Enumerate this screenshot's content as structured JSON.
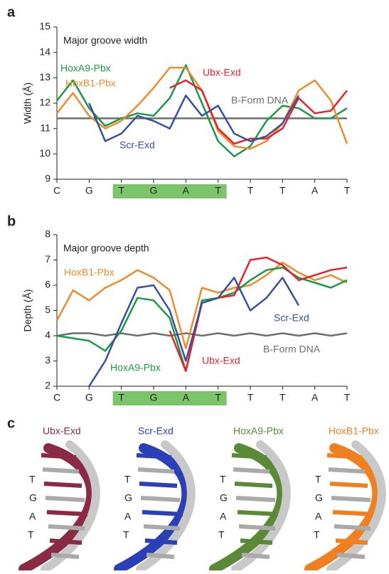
{
  "chart_data": [
    {
      "type": "line",
      "panel": "a",
      "annotation": "Major groove width",
      "ylabel": "Width (Å)",
      "x": [
        0,
        0.5,
        1,
        1.5,
        2,
        2.5,
        3,
        3.5,
        4,
        4.5,
        5,
        5.5,
        6,
        6.5,
        7,
        7.5,
        8,
        8.5,
        9
      ],
      "xlim": [
        0,
        9
      ],
      "xticks": [
        {
          "value": 0,
          "label": "C"
        },
        {
          "value": 1,
          "label": "G"
        },
        {
          "value": 2,
          "label": "T"
        },
        {
          "value": 3,
          "label": "G"
        },
        {
          "value": 4,
          "label": "A"
        },
        {
          "value": 5,
          "label": "T"
        },
        {
          "value": 6,
          "label": "T"
        },
        {
          "value": 7,
          "label": "T"
        },
        {
          "value": 8,
          "label": "A"
        },
        {
          "value": 9,
          "label": "T"
        }
      ],
      "ylim": [
        9,
        15
      ],
      "yticks": [
        9,
        10,
        11,
        12,
        13,
        14,
        15
      ],
      "series": [
        {
          "name": "HoxA9-Pbx",
          "color": "#1a9a48",
          "values": [
            12.1,
            12.9,
            11.8,
            11.1,
            11.4,
            11.6,
            11.5,
            12.2,
            13.5,
            12.0,
            10.5,
            9.9,
            10.3,
            11.3,
            11.9,
            11.8,
            11.4,
            11.4,
            11.8
          ]
        },
        {
          "name": "HoxB1-Pbx",
          "color": "#f08a2c",
          "values": [
            11.6,
            12.4,
            11.5,
            11.0,
            11.3,
            11.9,
            12.6,
            13.4,
            13.4,
            12.5,
            10.9,
            10.3,
            10.2,
            10.5,
            11.2,
            12.5,
            12.9,
            12.1,
            10.4
          ]
        },
        {
          "name": "Ubx-Exd",
          "color": "#e8222d",
          "values": [
            null,
            null,
            null,
            null,
            null,
            null,
            null,
            12.6,
            12.9,
            12.5,
            11.0,
            10.4,
            10.6,
            10.6,
            11.0,
            12.2,
            11.6,
            11.7,
            12.5
          ]
        },
        {
          "name": "Scr-Exd",
          "color": "#3a4fa0",
          "values": [
            null,
            null,
            12.0,
            10.5,
            10.8,
            11.5,
            11.3,
            11.0,
            12.3,
            11.5,
            11.9,
            10.8,
            10.5,
            10.7,
            11.2,
            12.3,
            null,
            null,
            null
          ]
        },
        {
          "name": "B-Form DNA",
          "color": "#6d6e70",
          "values": [
            11.4,
            11.4,
            11.4,
            11.4,
            11.4,
            11.4,
            11.4,
            11.4,
            11.4,
            11.4,
            11.4,
            11.4,
            11.4,
            11.4,
            11.4,
            11.4,
            11.4,
            11.4,
            11.4
          ]
        }
      ]
    },
    {
      "type": "line",
      "panel": "b",
      "annotation": "Major groove depth",
      "ylabel": "Depth (Å)",
      "x": [
        0,
        0.5,
        1,
        1.5,
        2,
        2.5,
        3,
        3.5,
        4,
        4.5,
        5,
        5.5,
        6,
        6.5,
        7,
        7.5,
        8,
        8.5,
        9
      ],
      "xlim": [
        0,
        9
      ],
      "xticks": [
        {
          "value": 0,
          "label": "C"
        },
        {
          "value": 1,
          "label": "G"
        },
        {
          "value": 2,
          "label": "T"
        },
        {
          "value": 3,
          "label": "G"
        },
        {
          "value": 4,
          "label": "A"
        },
        {
          "value": 5,
          "label": "T"
        },
        {
          "value": 6,
          "label": "T"
        },
        {
          "value": 7,
          "label": "T"
        },
        {
          "value": 8,
          "label": "A"
        },
        {
          "value": 9,
          "label": "T"
        }
      ],
      "ylim": [
        2,
        8
      ],
      "yticks": [
        2,
        3,
        4,
        5,
        6,
        7,
        8
      ],
      "series": [
        {
          "name": "HoxB1-Pbx",
          "color": "#f08a2c",
          "values": [
            4.6,
            5.8,
            5.4,
            5.9,
            6.2,
            6.6,
            6.3,
            5.8,
            3.5,
            5.9,
            5.7,
            5.9,
            6.0,
            6.4,
            6.9,
            6.5,
            6.2,
            6.4,
            6.1
          ]
        },
        {
          "name": "HoxA9-Pbx",
          "color": "#1a9a48",
          "values": [
            4.0,
            3.9,
            3.8,
            3.4,
            4.2,
            5.5,
            5.4,
            4.7,
            2.6,
            5.4,
            5.5,
            5.7,
            6.2,
            6.6,
            6.7,
            6.3,
            6.1,
            5.9,
            6.2
          ]
        },
        {
          "name": "Ubx-Exd",
          "color": "#e8222d",
          "values": [
            null,
            null,
            null,
            null,
            null,
            null,
            null,
            4.2,
            2.6,
            5.3,
            5.5,
            5.6,
            7.0,
            7.1,
            6.8,
            6.2,
            6.4,
            6.6,
            6.7
          ]
        },
        {
          "name": "Scr-Exd",
          "color": "#3a4fa0",
          "values": [
            null,
            null,
            2.0,
            3.0,
            4.5,
            5.9,
            6.0,
            5.0,
            3.0,
            5.3,
            5.5,
            6.3,
            5.0,
            5.5,
            6.3,
            5.2,
            null,
            null,
            null
          ]
        },
        {
          "name": "B-Form DNA",
          "color": "#6d6e70",
          "values": [
            4.0,
            4.1,
            4.1,
            4.0,
            4.1,
            4.0,
            4.1,
            4.0,
            4.1,
            4.0,
            4.1,
            4.0,
            4.1,
            4.0,
            4.1,
            4.0,
            4.1,
            4.0,
            4.1
          ]
        }
      ]
    }
  ],
  "panel_c": {
    "label": "c",
    "structures": [
      {
        "name": "Ubx-Exd",
        "color": "#8b2a45",
        "bases": [
          "T",
          "G",
          "A",
          "T"
        ]
      },
      {
        "name": "Scr-Exd",
        "color": "#2a3fb8",
        "bases": [
          "T",
          "G",
          "A",
          "T"
        ]
      },
      {
        "name": "HoxA9-Pbx",
        "color": "#5a8a38",
        "bases": [
          "T",
          "G",
          "A",
          "T"
        ]
      },
      {
        "name": "HoxB1-Pbx",
        "color": "#f07f1f",
        "bases": [
          "T",
          "G",
          "A",
          "T"
        ]
      }
    ]
  }
}
